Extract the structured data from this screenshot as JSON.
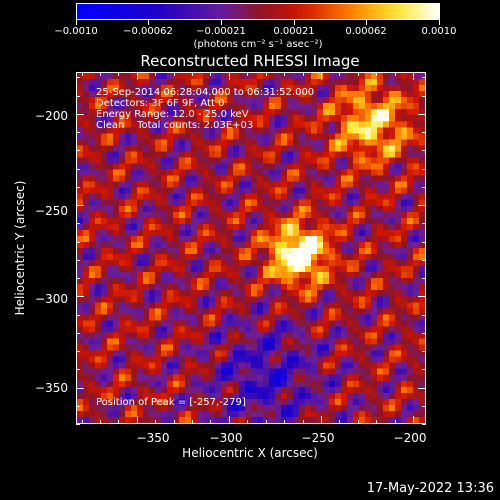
{
  "colorbar": {
    "tick_labels": [
      "−0.0010",
      "−0.00062",
      "−0.00021",
      "0.00021",
      "0.00062",
      "0.0010"
    ],
    "unit": "(photons cm⁻² s⁻¹ asec⁻²)",
    "range": [
      -0.001,
      0.001
    ]
  },
  "title": "Reconstructed RHESSI Image",
  "info": {
    "line1": "25-Sep-2014 06:28:04.000 to 06:31:52.000",
    "line2": "Detectors: 3F 6F 9F, Att 0",
    "line3": "Energy Range: 12.0 - 25.0 keV",
    "line4": "Clean    Total counts: 2.03E+03",
    "peak": "Position of Peak = [-257,-279]"
  },
  "axes": {
    "xlabel": "Heliocentric X (arcsec)",
    "ylabel": "Heliocentric Y (arcsec)",
    "xticks": [
      "−350",
      "−300",
      "−250",
      "−200"
    ],
    "yticks": [
      "−200",
      "−250",
      "−300",
      "−350"
    ],
    "xlim": [
      -383,
      -193
    ],
    "ylim": [
      -370,
      -177
    ]
  },
  "timestamp": "17-May-2022 13:36"
}
